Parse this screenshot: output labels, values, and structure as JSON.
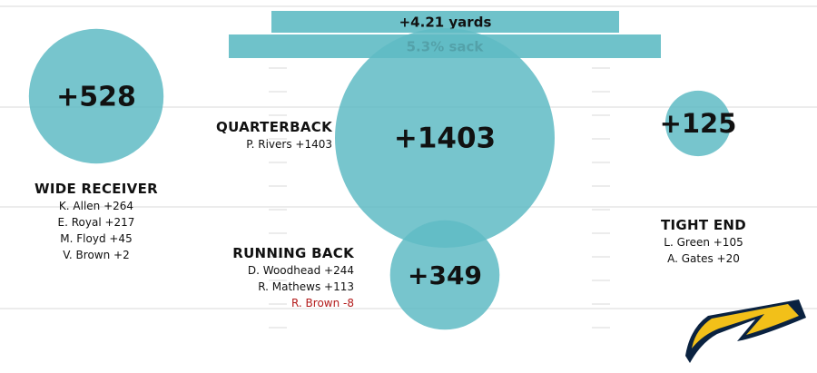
{
  "colors": {
    "bubble": "#5fbbc4",
    "negative": "#b31b1b",
    "text": "#111111",
    "field_line": "#e6e6e6",
    "logo_navy": "#0a2240",
    "logo_gold": "#f2c019"
  },
  "chart_data": {
    "type": "bubble",
    "summary_bars": [
      {
        "label": "+4.21 yards"
      },
      {
        "label": "5.3% sack"
      }
    ],
    "groups": [
      {
        "position": "WIDE RECEIVER",
        "total": 528,
        "total_label": "+528",
        "players": [
          {
            "text": "K. Allen +264",
            "value": 264,
            "negative": false
          },
          {
            "text": "E. Royal +217",
            "value": 217,
            "negative": false
          },
          {
            "text": "M. Floyd +45",
            "value": 45,
            "negative": false
          },
          {
            "text": "V. Brown +2",
            "value": 2,
            "negative": false
          }
        ]
      },
      {
        "position": "QUARTERBACK",
        "total": 1403,
        "total_label": "+1403",
        "players": [
          {
            "text": "P. Rivers +1403",
            "value": 1403,
            "negative": false
          }
        ]
      },
      {
        "position": "TIGHT END",
        "total": 125,
        "total_label": "+125",
        "players": [
          {
            "text": "L. Green +105",
            "value": 105,
            "negative": false
          },
          {
            "text": "A. Gates +20",
            "value": 20,
            "negative": false
          }
        ]
      },
      {
        "position": "RUNNING BACK",
        "total": 349,
        "total_label": "+349",
        "players": [
          {
            "text": "D. Woodhead +244",
            "value": 244,
            "negative": false
          },
          {
            "text": "R. Mathews +113",
            "value": 113,
            "negative": false
          },
          {
            "text": "R. Brown -8",
            "value": -8,
            "negative": true
          }
        ]
      }
    ]
  },
  "logo": {
    "icon": "lightning-bolt-logo"
  }
}
